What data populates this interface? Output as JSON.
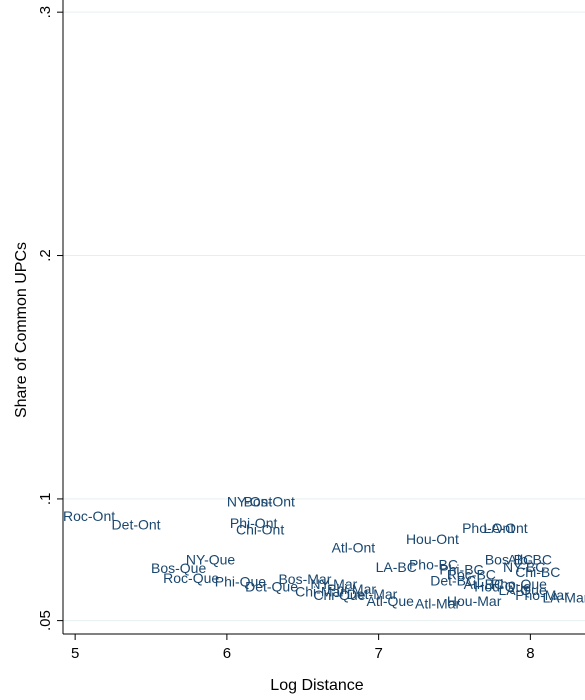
{
  "chart_data": {
    "type": "scatter",
    "marker": "label",
    "xlabel": "Log Distance",
    "ylabel": "Share of Common UPCs",
    "xlim": [
      4.92,
      8.36
    ],
    "ylim": [
      0.0445,
      0.305
    ],
    "xticks": [
      {
        "value": 5,
        "label": "5"
      },
      {
        "value": 6,
        "label": "6"
      },
      {
        "value": 7,
        "label": "7"
      },
      {
        "value": 8,
        "label": "8"
      }
    ],
    "yticks": [
      {
        "value": 0.05,
        "label": ".05"
      },
      {
        "value": 0.1,
        "label": ".1"
      },
      {
        "value": 0.2,
        "label": ".2"
      },
      {
        "value": 0.3,
        "label": ".3"
      }
    ],
    "grid": true,
    "colors": {
      "label": "#1a476f",
      "grid": "#e6efef",
      "axis": "#000000"
    },
    "points": [
      {
        "label": "Roc-Ont",
        "x": 4.92,
        "y": 0.0925
      },
      {
        "label": "Det-Ont",
        "x": 5.24,
        "y": 0.089
      },
      {
        "label": "NY-Ont",
        "x": 6.0,
        "y": 0.0985
      },
      {
        "label": "Bos-Ont",
        "x": 6.11,
        "y": 0.0985
      },
      {
        "label": "Phi-Ont",
        "x": 6.02,
        "y": 0.0895
      },
      {
        "label": "Chi-Ont",
        "x": 6.06,
        "y": 0.087
      },
      {
        "label": "NY-Que",
        "x": 5.73,
        "y": 0.0745
      },
      {
        "label": "Bos-Que",
        "x": 5.5,
        "y": 0.071
      },
      {
        "label": "Roc-Que",
        "x": 5.58,
        "y": 0.067
      },
      {
        "label": "Phi-Que",
        "x": 5.92,
        "y": 0.0655
      },
      {
        "label": "Det-Que",
        "x": 6.12,
        "y": 0.0635
      },
      {
        "label": "Bos-Mar",
        "x": 6.34,
        "y": 0.0665
      },
      {
        "label": "NY-Mar",
        "x": 6.55,
        "y": 0.0645
      },
      {
        "label": "Chi-Mar",
        "x": 6.45,
        "y": 0.0615
      },
      {
        "label": "Phi-Mar",
        "x": 6.66,
        "y": 0.0625
      },
      {
        "label": "Chi-Que",
        "x": 6.57,
        "y": 0.06
      },
      {
        "label": "Atl-Ont",
        "x": 6.69,
        "y": 0.0795
      },
      {
        "label": "LA-BC",
        "x": 6.98,
        "y": 0.0715
      },
      {
        "label": "Pho-BC",
        "x": 7.2,
        "y": 0.0725
      },
      {
        "label": "Atl-Que",
        "x": 6.92,
        "y": 0.0575
      },
      {
        "label": "Det-Mar",
        "x": 6.79,
        "y": 0.0605
      },
      {
        "label": "Hou-Ont",
        "x": 7.18,
        "y": 0.083
      },
      {
        "label": "Pho-Ont",
        "x": 7.55,
        "y": 0.0875
      },
      {
        "label": "LA-Ont",
        "x": 7.69,
        "y": 0.0875
      },
      {
        "label": "Bos-BC",
        "x": 7.7,
        "y": 0.0745
      },
      {
        "label": "Alb-BC",
        "x": 7.85,
        "y": 0.0745
      },
      {
        "label": "NY-BC",
        "x": 7.82,
        "y": 0.0715
      },
      {
        "label": "Chi-BC",
        "x": 7.9,
        "y": 0.0695
      },
      {
        "label": "Atl-BC",
        "x": 7.56,
        "y": 0.0645
      },
      {
        "label": "Hou-Que",
        "x": 7.63,
        "y": 0.0635
      },
      {
        "label": "Roc-BC",
        "x": 7.45,
        "y": 0.0685
      },
      {
        "label": "Det-BC",
        "x": 7.34,
        "y": 0.066
      },
      {
        "label": "Phi-BC",
        "x": 7.4,
        "y": 0.0705
      },
      {
        "label": "Atl-Mar",
        "x": 7.24,
        "y": 0.0565
      },
      {
        "label": "Hou-Mar",
        "x": 7.45,
        "y": 0.0575
      },
      {
        "label": "Pho-Mar",
        "x": 7.9,
        "y": 0.06
      },
      {
        "label": "LA-Mar",
        "x": 8.08,
        "y": 0.059
      },
      {
        "label": "Pho-Que",
        "x": 7.74,
        "y": 0.0645
      },
      {
        "label": "LA-Que",
        "x": 7.79,
        "y": 0.062
      }
    ]
  }
}
